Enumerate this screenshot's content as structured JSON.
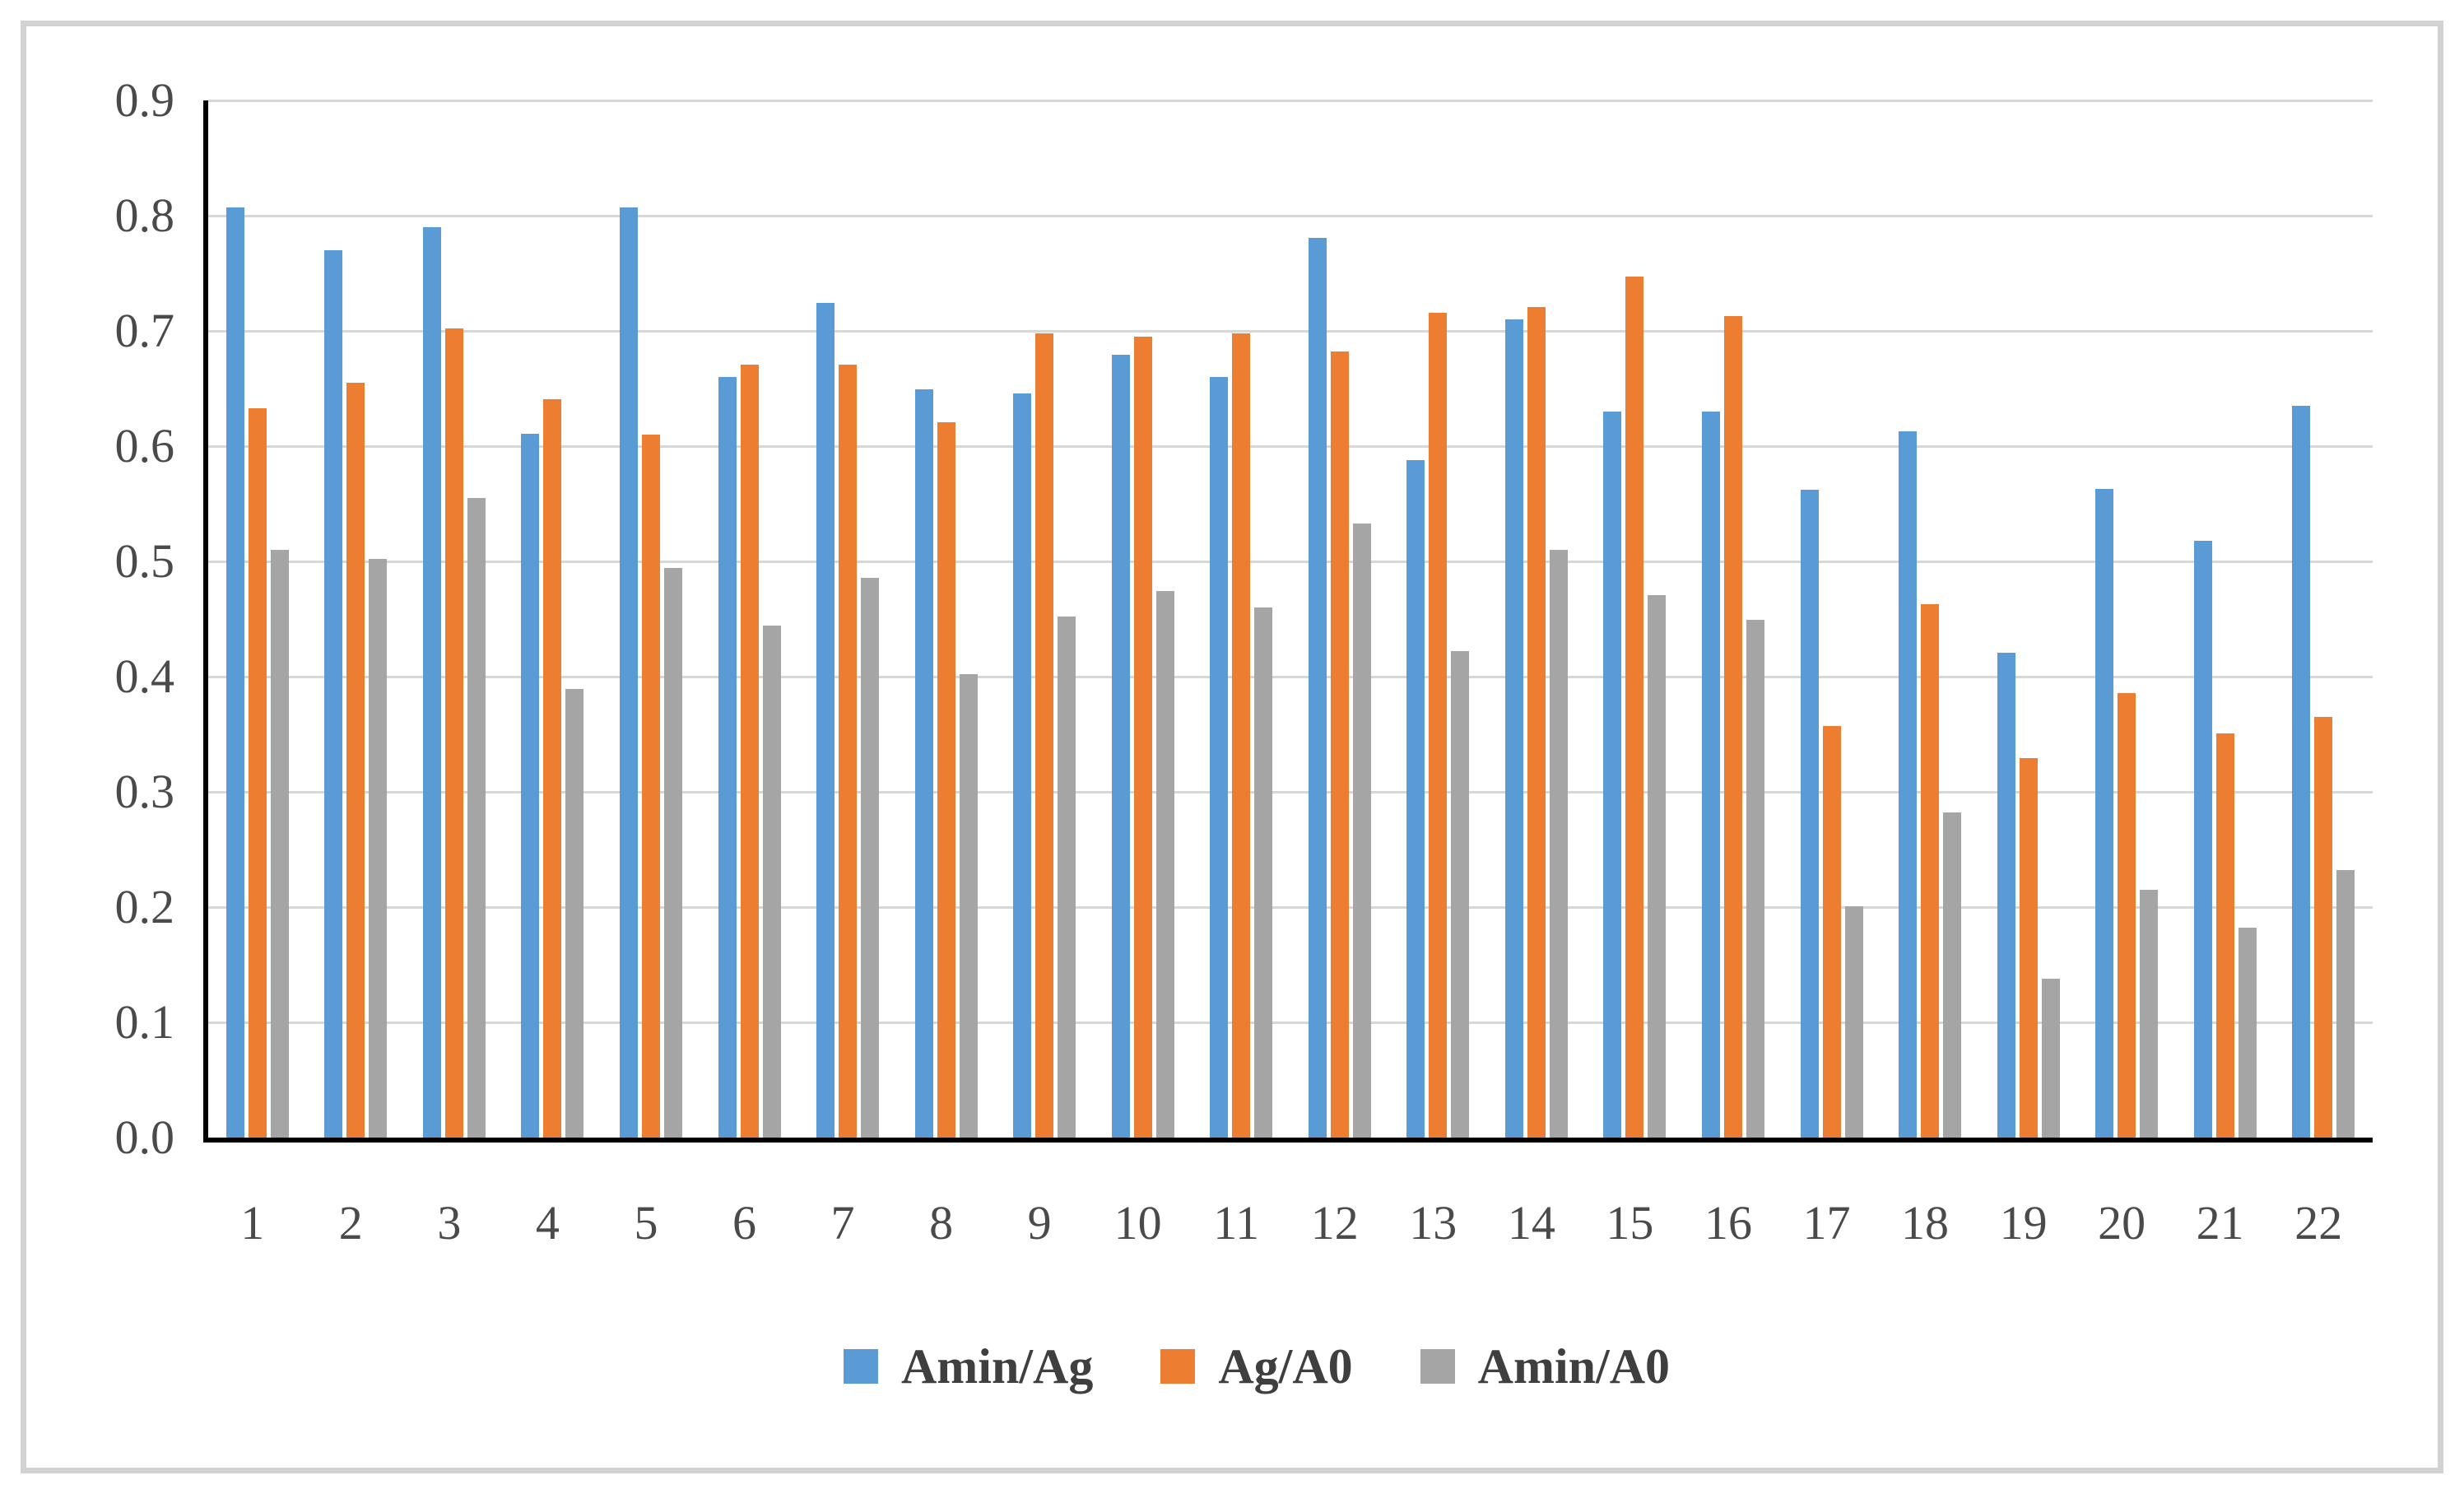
{
  "figure": {
    "background_color": "#ffffff",
    "border_color": "#d2d2d2"
  },
  "chart_data": {
    "type": "bar",
    "title": "",
    "xlabel": "",
    "ylabel": "",
    "categories": [
      "1",
      "2",
      "3",
      "4",
      "5",
      "6",
      "7",
      "8",
      "9",
      "10",
      "11",
      "12",
      "13",
      "14",
      "15",
      "16",
      "17",
      "18",
      "19",
      "20",
      "21",
      "22"
    ],
    "series": [
      {
        "name": "Amin/Ag",
        "color": "#5B9BD5",
        "values": [
          0.807,
          0.77,
          0.79,
          0.611,
          0.807,
          0.66,
          0.724,
          0.649,
          0.646,
          0.679,
          0.66,
          0.781,
          0.588,
          0.71,
          0.63,
          0.63,
          0.562,
          0.613,
          0.421,
          0.563,
          0.518,
          0.635
        ]
      },
      {
        "name": "Ag/A0",
        "color": "#ED7D31",
        "values": [
          0.633,
          0.655,
          0.702,
          0.641,
          0.61,
          0.671,
          0.671,
          0.621,
          0.698,
          0.695,
          0.698,
          0.682,
          0.716,
          0.721,
          0.747,
          0.713,
          0.357,
          0.463,
          0.329,
          0.386,
          0.351,
          0.365
        ]
      },
      {
        "name": "Amin/A0",
        "color": "#A5A5A5",
        "values": [
          0.51,
          0.502,
          0.555,
          0.389,
          0.494,
          0.444,
          0.486,
          0.402,
          0.452,
          0.474,
          0.46,
          0.533,
          0.422,
          0.51,
          0.471,
          0.449,
          0.201,
          0.282,
          0.138,
          0.215,
          0.182,
          0.232
        ]
      }
    ],
    "ylim": [
      0.0,
      0.9
    ],
    "ytick_step": 0.1,
    "y_ticks": [
      "0.9",
      "0.8",
      "0.7",
      "0.6",
      "0.5",
      "0.4",
      "0.3",
      "0.2",
      "0.1",
      "0.0"
    ],
    "grid": true,
    "gridline_color": "#d7d7d7",
    "axis_color": "#000000",
    "tick_label_color": "#4a4a4a",
    "legend_position": "bottom"
  }
}
